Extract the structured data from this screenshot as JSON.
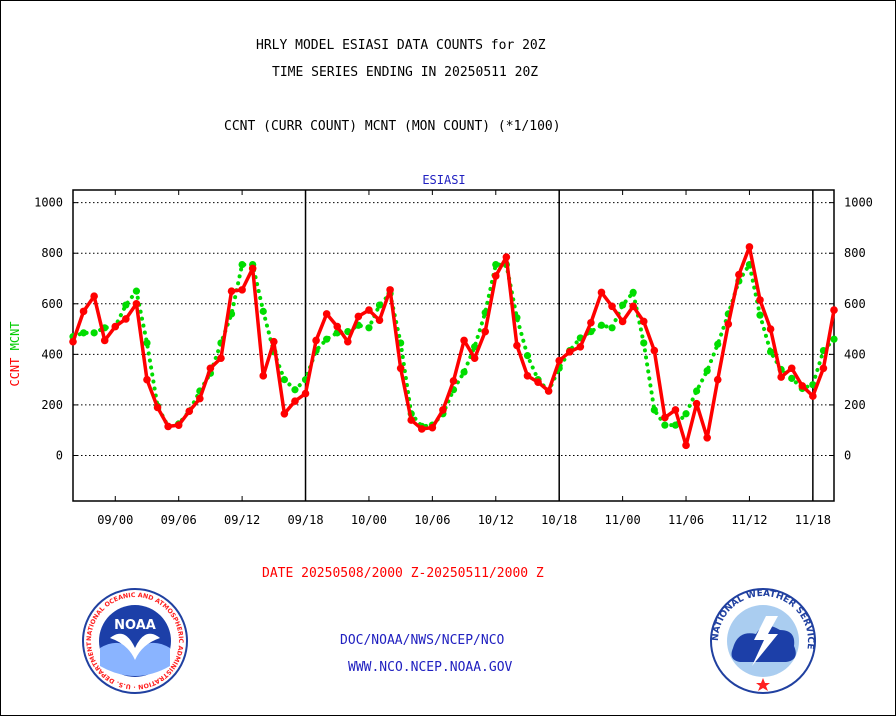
{
  "header": {
    "line1": "HRLY MODEL ESIASI DATA COUNTS for 20Z",
    "line2": "TIME SERIES ENDING IN 20250511 20Z",
    "line3": "CCNT (CURR COUNT) MCNT (MON COUNT) (*1/100)"
  },
  "footer": {
    "date_range": "DATE 20250508/2000 Z-20250511/2000 Z",
    "org": "DOC/NOAA/NWS/NCEP/NCO",
    "url": "WWW.NCO.NCEP.NOAA.GOV",
    "noaa_logo_text": "NOAA",
    "noaa_ring_text": "NATIONAL OCEANIC AND ATMOSPHERIC ADMINISTRATION · U.S. DEPARTMENT OF COMMERCE",
    "nws_ring_text": "NATIONAL WEATHER SERVICE"
  },
  "colors": {
    "ccnt": "#ff0000",
    "mcnt": "#00dd00",
    "title": "#2020c0",
    "grid": "#000000"
  },
  "chart_data": {
    "type": "line",
    "title": "ESIASI",
    "ylabel_parts": [
      {
        "text": "CCNT",
        "color": "#ff0000"
      },
      {
        "text": "MCNT",
        "color": "#00cc00"
      }
    ],
    "ylim": [
      -180,
      1050
    ],
    "yticks": [
      0,
      200,
      400,
      600,
      800,
      1000
    ],
    "grid": "horizontal dotted",
    "x_range": [
      0,
      72
    ],
    "xtick_positions": [
      4,
      10,
      16,
      22,
      28,
      34,
      40,
      46,
      52,
      58,
      64,
      70
    ],
    "xtick_labels": [
      "09/00",
      "09/06",
      "09/12",
      "09/18",
      "10/00",
      "10/06",
      "10/12",
      "10/18",
      "11/00",
      "11/06",
      "11/12",
      "11/18"
    ],
    "day_dividers": [
      22,
      46,
      70
    ],
    "series": [
      {
        "name": "CCNT",
        "color": "#ff0000",
        "values": [
          450,
          570,
          630,
          455,
          510,
          540,
          600,
          300,
          190,
          115,
          120,
          175,
          225,
          345,
          385,
          650,
          655,
          740,
          315,
          450,
          165,
          215,
          245,
          455,
          560,
          510,
          450,
          550,
          575,
          535,
          655,
          345,
          140,
          105,
          110,
          180,
          295,
          455,
          385,
          490,
          710,
          785,
          435,
          315,
          290,
          255,
          375,
          410,
          430,
          525,
          645,
          590,
          530,
          590,
          530,
          415,
          150,
          180,
          40,
          205,
          70,
          300,
          520,
          715,
          825,
          615,
          500,
          310,
          345,
          275,
          235,
          345,
          575
        ]
      },
      {
        "name": "MCNT",
        "color": "#00dd00",
        "values": [
          470,
          485,
          485,
          505,
          510,
          595,
          650,
          445,
          195,
          115,
          125,
          175,
          255,
          325,
          445,
          560,
          755,
          755,
          570,
          410,
          300,
          260,
          300,
          415,
          460,
          485,
          490,
          515,
          505,
          595,
          640,
          445,
          165,
          115,
          120,
          165,
          260,
          330,
          430,
          565,
          755,
          755,
          545,
          395,
          300,
          255,
          345,
          415,
          465,
          490,
          515,
          505,
          595,
          645,
          445,
          180,
          120,
          120,
          165,
          255,
          335,
          440,
          560,
          690,
          755,
          555,
          410,
          340,
          305,
          265,
          280,
          415,
          460
        ]
      }
    ]
  }
}
